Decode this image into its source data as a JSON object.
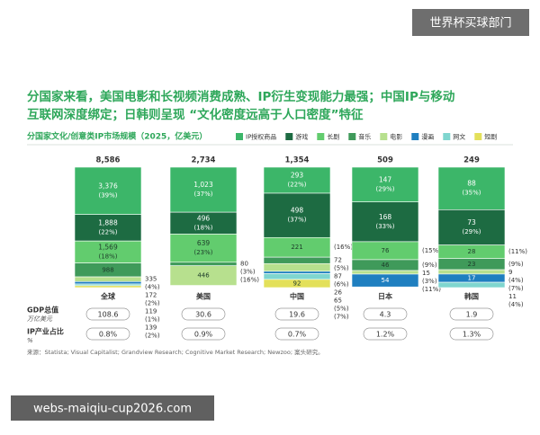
{
  "chart_data": {
    "type": "stacked-bar-100",
    "title_lines": [
      "分国家来看，美国电影和长视频消费成熟、IP衍生变现能力最强；中国IP与移动",
      "互联网深度绑定；日韩则呈现 “文化密度远高于人口密度”特征"
    ],
    "subtitle": "分国家文化/创意类IP市场规模（2025，亿美元）",
    "categories": [
      "全球",
      "美国",
      "中国",
      "日本",
      "韩国"
    ],
    "totals": [
      8586,
      2734,
      1354,
      509,
      249
    ],
    "total_labels": [
      "8,586",
      "2,734",
      "1,354",
      "509",
      "249"
    ],
    "series": [
      {
        "name": "IP授权商品",
        "color": "#3cb669",
        "values": [
          3376,
          1023,
          293,
          147,
          88
        ],
        "value_labels": [
          "3,376",
          "1,023",
          "293",
          "147",
          "88"
        ],
        "percent_labels": [
          "(39%)",
          "(37%)",
          "(22%)",
          "(29%)",
          "(35%)"
        ]
      },
      {
        "name": "游戏",
        "color": "#1d6b42",
        "values": [
          1888,
          496,
          498,
          168,
          73
        ],
        "value_labels": [
          "1,888",
          "496",
          "498",
          "168",
          "73"
        ],
        "percent_labels": [
          "(22%)",
          "(18%)",
          "(37%)",
          "(33%)",
          "(29%)"
        ]
      },
      {
        "name": "长剧",
        "color": "#62cc6e",
        "values": [
          1569,
          639,
          221,
          76,
          28
        ],
        "value_labels": [
          "1,569",
          "639",
          "221",
          "76",
          "28"
        ],
        "percent_labels": [
          "(18%)",
          "(23%)",
          "(16%)",
          "(15%)",
          "(11%)"
        ]
      },
      {
        "name": "音乐",
        "color": "#3f9a5a",
        "values": [
          988,
          80,
          72,
          46,
          23
        ],
        "percent_labels": [
          null,
          "(3%)",
          "(5%)",
          "(9%)",
          "(9%)"
        ]
      },
      {
        "name": "电影",
        "color": "#b7e08e",
        "values": [
          335,
          446,
          87,
          15,
          9
        ],
        "percent_labels": [
          "(4%)",
          "(16%)",
          "(6%)",
          "(3%)",
          "(4%)"
        ]
      },
      {
        "name": "漫画",
        "color": "#1f7fc0",
        "values": [
          172,
          null,
          26,
          54,
          17
        ],
        "percent_labels": [
          "(2%)",
          null,
          null,
          "(11%)",
          "(7%)"
        ]
      },
      {
        "name": "网文",
        "color": "#7fd6cf",
        "values": [
          119,
          null,
          65,
          null,
          11
        ],
        "percent_labels": [
          "(1%)",
          null,
          "(5%)",
          null,
          "(4%)"
        ]
      },
      {
        "name": "短剧",
        "color": "#e3e05a",
        "values": [
          139,
          null,
          92,
          null,
          null
        ],
        "percent_labels": [
          "(2%)",
          null,
          "(7%)",
          null,
          null
        ]
      }
    ],
    "gdp": {
      "label": "GDP总值",
      "unit": "万亿美元",
      "values": [
        108.6,
        30.6,
        19.6,
        4.3,
        1.9
      ]
    },
    "ip_share": {
      "label": "IP产业占比",
      "unit": "%",
      "values": [
        0.8,
        0.9,
        0.7,
        1.2,
        1.3
      ],
      "value_labels": [
        "0.8%",
        "0.9%",
        "0.7%",
        "1.2%",
        "1.3%"
      ]
    },
    "source": "来源：Statista; Visual Capitalist; Grandview Research; Cognitive Market Research; Newzoo; 案头研究。"
  },
  "overlay": {
    "badge": "世界杯买球部门",
    "url": "webs-maiqiu-cup2026.com"
  }
}
